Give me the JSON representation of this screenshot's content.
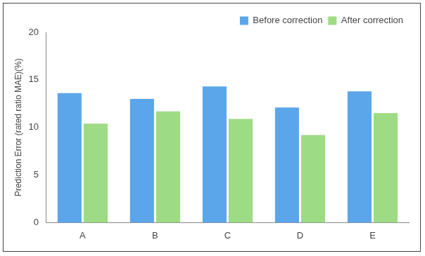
{
  "chart_data": {
    "type": "bar",
    "y_label": "Prediction Error (rated ratio MAE)(%)",
    "categories": [
      "A",
      "B",
      "C",
      "D",
      "E"
    ],
    "series": [
      {
        "name": "Before correction",
        "color": "#5ba6ea",
        "values": [
          13.6,
          13.0,
          14.3,
          12.1,
          13.8
        ]
      },
      {
        "name": "After correction",
        "color": "#9ddc84",
        "values": [
          10.4,
          11.7,
          10.9,
          9.2,
          11.5
        ]
      }
    ],
    "ylim": [
      0,
      20
    ],
    "yticks": [
      0,
      5,
      10,
      15,
      20
    ],
    "grid": false,
    "legend": "top-right"
  }
}
